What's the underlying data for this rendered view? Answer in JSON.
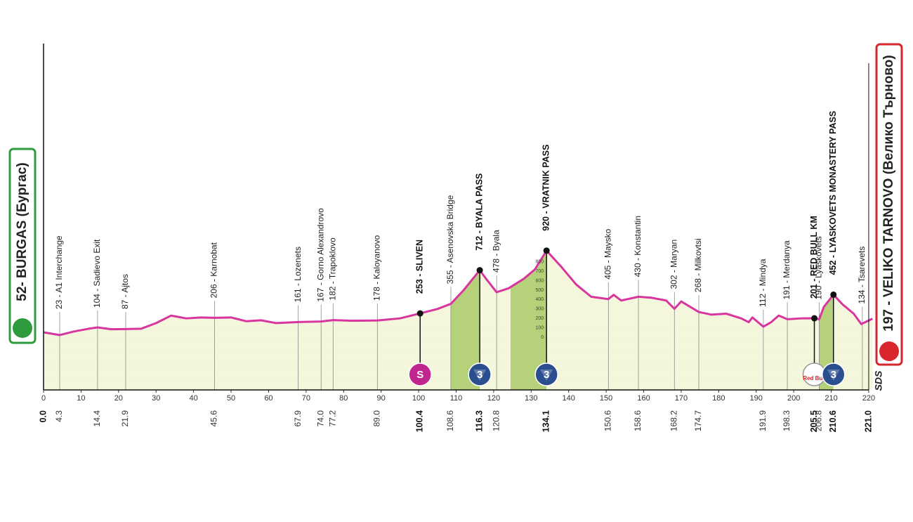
{
  "chart_data": {
    "type": "profile",
    "start": "52- BURGAS (Бургас)",
    "finish": "197 - VELIKO TARNOVO (Велико Търново)",
    "logo": "SDS",
    "xlim": [
      0,
      221
    ],
    "xticks": [
      0,
      10,
      20,
      30,
      40,
      50,
      60,
      70,
      80,
      90,
      100,
      110,
      120,
      130,
      140,
      150,
      160,
      170,
      180,
      190,
      200,
      210,
      220
    ],
    "ylim": [
      -560,
      3120
    ],
    "yticks": [
      0,
      100,
      200,
      300,
      400,
      500,
      600,
      700,
      800
    ],
    "start_km": {
      "value": 0,
      "label": "0.0"
    },
    "finish_km": {
      "value": 221,
      "label": "221.0"
    },
    "profile": {
      "color": "#d8359f",
      "km": [
        0,
        4.3,
        8,
        12,
        14.4,
        18,
        21.9,
        26,
        30,
        34,
        38,
        42,
        45.6,
        50,
        54,
        58,
        62,
        67.9,
        74,
        77.2,
        82,
        89,
        95,
        100.4,
        105,
        108.6,
        112,
        116.3,
        118,
        120.8,
        124,
        128,
        131,
        134.1,
        138,
        142,
        146,
        150.6,
        152,
        154,
        158.6,
        162,
        166,
        168.2,
        170,
        174.7,
        178,
        182,
        186,
        188,
        189,
        191.9,
        194,
        196,
        198.3,
        202,
        205.5,
        206.8,
        208,
        210.6,
        213,
        216,
        218,
        221
      ],
      "elevation": [
        52,
        23,
        60,
        90,
        104,
        85,
        87,
        90,
        150,
        230,
        200,
        210,
        206,
        210,
        170,
        180,
        150,
        161,
        167,
        182,
        175,
        178,
        200,
        253,
        300,
        355,
        500,
        712,
        620,
        478,
        520,
        620,
        720,
        920,
        750,
        560,
        430,
        405,
        450,
        390,
        430,
        420,
        390,
        302,
        380,
        268,
        240,
        250,
        200,
        160,
        210,
        112,
        160,
        230,
        191,
        200,
        201,
        190,
        320,
        452,
        350,
        250,
        140,
        197
      ]
    },
    "climb_color": "#b5d27a",
    "climbs": [
      {
        "from": 108.6,
        "to": 116.3
      },
      {
        "from": 124.5,
        "to": 134.1
      },
      {
        "from": 206.8,
        "to": 210.6
      }
    ],
    "waypoints": [
      {
        "km": 4.3,
        "label": "23 - A1 Interchange"
      },
      {
        "km": 14.4,
        "label": "104 - Sadievo Exit"
      },
      {
        "km": 21.9,
        "label": "87 - Ajtos"
      },
      {
        "km": 45.6,
        "label": "206 - Karnobat"
      },
      {
        "km": 67.9,
        "label": "161 - Lozenets"
      },
      {
        "km": {
          "value": 74,
          "label": "74.0"
        },
        "label": "167 - Gorno Alexandrovo"
      },
      {
        "km": 77.2,
        "label": "182 - Trapoklovo"
      },
      {
        "km": {
          "value": 89,
          "label": "89.0"
        },
        "label": "178 - Kaloyanovo"
      },
      {
        "km": 100.4,
        "label": "253 - SLIVEN",
        "bold": true
      },
      {
        "km": 108.6,
        "label": "355 - Asenovska Bridge"
      },
      {
        "km": 116.3,
        "label": "712 - BYALA PASS",
        "bold": true
      },
      {
        "km": 120.8,
        "label": "478 - Byala"
      },
      {
        "km": 134.1,
        "label": "920 - VRATNIK PASS",
        "bold": true
      },
      {
        "km": 150.6,
        "label": "405 - Maysko"
      },
      {
        "km": 158.6,
        "label": "430 - Konstantin"
      },
      {
        "km": 168.2,
        "label": "302 - Maryan"
      },
      {
        "km": 174.7,
        "label": "268 - Milkovtsi"
      },
      {
        "km": 191.9,
        "label": "112 - Mindya"
      },
      {
        "km": 198.3,
        "label": "191 - Merdanya"
      },
      {
        "km": 205.5,
        "label": "201 - RED BULL KM",
        "bold": true
      },
      {
        "km": 206.8,
        "label": "190 - Lyaskovets"
      },
      {
        "km": 210.6,
        "label": "452 - LYASKOVETS MONASTERY PASS",
        "bold": true
      },
      {
        "at": 218.3,
        "label": "134 - Tsarevets"
      }
    ],
    "markers": [
      {
        "km": 100.4,
        "label": "S",
        "color": "#c0268e"
      },
      {
        "km": 116.3,
        "label": "3",
        "color": "#2b4f8e"
      },
      {
        "km": 134.1,
        "label": "3",
        "color": "#2b4f8e"
      },
      {
        "km": 205.5,
        "label": "Red Bull",
        "color": "#ffffff"
      },
      {
        "km": 210.6,
        "label": "3",
        "color": "#2b4f8e"
      }
    ]
  }
}
